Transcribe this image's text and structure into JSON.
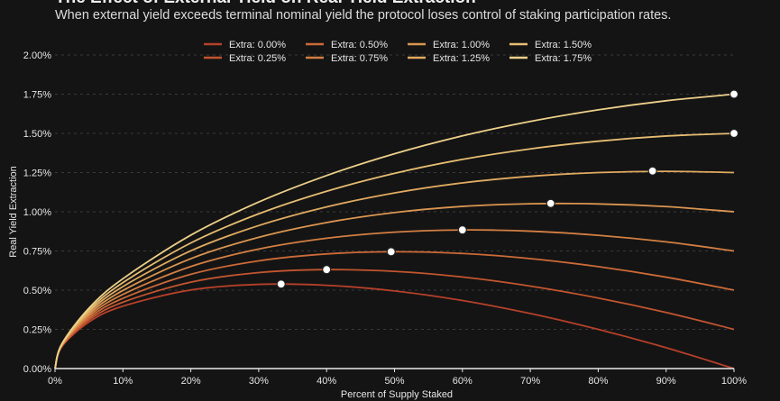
{
  "header": {
    "title": "The Effect of External Yield on Real Yield Extraction",
    "subtitle": "When external yield exceeds terminal nominal yield the protocol loses control of staking participation rates."
  },
  "chart_data": {
    "type": "line",
    "title": "The Effect of External Yield on Real Yield Extraction",
    "subtitle": "When external yield exceeds terminal nominal yield the protocol loses control of staking participation rates.",
    "xlabel": "Percent of Supply Staked",
    "ylabel": "Real Yield Extraction",
    "xlim": [
      0,
      100
    ],
    "ylim": [
      0,
      2.0
    ],
    "x_ticks": [
      "0%",
      "10%",
      "20%",
      "30%",
      "40%",
      "50%",
      "60%",
      "70%",
      "80%",
      "90%",
      "100%"
    ],
    "y_ticks": [
      "0.00%",
      "0.25%",
      "0.50%",
      "0.75%",
      "1.00%",
      "1.25%",
      "1.50%",
      "1.75%",
      "2.00%"
    ],
    "grid": "horizontal dashed",
    "legend_placement": "top-center",
    "x": [
      0,
      1,
      5,
      10,
      20,
      30,
      40,
      50,
      60,
      70,
      80,
      90,
      100
    ],
    "series": [
      {
        "name": "Extra: 0.00%",
        "color": "#b5402a",
        "values": [
          0,
          0.139,
          0.297,
          0.398,
          0.501,
          0.537,
          0.531,
          0.495,
          0.434,
          0.351,
          0.25,
          0.133,
          0
        ],
        "peak": [
          33.3,
          0.539
        ]
      },
      {
        "name": "Extra: 0.25%",
        "color": "#c2552f",
        "values": [
          0,
          0.141,
          0.31,
          0.423,
          0.551,
          0.612,
          0.631,
          0.62,
          0.584,
          0.526,
          0.45,
          0.358,
          0.25
        ],
        "peak": [
          40,
          0.631
        ]
      },
      {
        "name": "Extra: 0.50%",
        "color": "#cc6a38",
        "values": [
          0,
          0.144,
          0.322,
          0.448,
          0.601,
          0.687,
          0.731,
          0.745,
          0.734,
          0.701,
          0.65,
          0.583,
          0.5
        ],
        "peak": [
          49.5,
          0.745
        ]
      },
      {
        "name": "Extra: 0.75%",
        "color": "#d37f43",
        "values": [
          0,
          0.147,
          0.335,
          0.473,
          0.651,
          0.762,
          0.831,
          0.87,
          0.884,
          0.876,
          0.85,
          0.808,
          0.75
        ],
        "peak": [
          60,
          0.884
        ]
      },
      {
        "name": "Extra: 1.00%",
        "color": "#da9550",
        "values": [
          0,
          0.149,
          0.347,
          0.498,
          0.701,
          0.837,
          0.931,
          0.995,
          1.034,
          1.051,
          1.05,
          1.033,
          1.0
        ],
        "peak": [
          73,
          1.053
        ]
      },
      {
        "name": "Extra: 1.25%",
        "color": "#e0aa60",
        "values": [
          0,
          0.152,
          0.36,
          0.523,
          0.751,
          0.912,
          1.031,
          1.12,
          1.184,
          1.226,
          1.25,
          1.258,
          1.25
        ],
        "peak": [
          88,
          1.26
        ]
      },
      {
        "name": "Extra: 1.50%",
        "color": "#e6bd72",
        "values": [
          0,
          0.154,
          0.372,
          0.548,
          0.801,
          0.987,
          1.131,
          1.245,
          1.334,
          1.401,
          1.45,
          1.483,
          1.5
        ],
        "peak": [
          100,
          1.5
        ]
      },
      {
        "name": "Extra: 1.75%",
        "color": "#edd08a",
        "values": [
          0,
          0.157,
          0.385,
          0.573,
          0.851,
          1.062,
          1.231,
          1.37,
          1.484,
          1.576,
          1.65,
          1.708,
          1.75
        ],
        "peak": [
          100,
          1.75
        ]
      }
    ]
  }
}
